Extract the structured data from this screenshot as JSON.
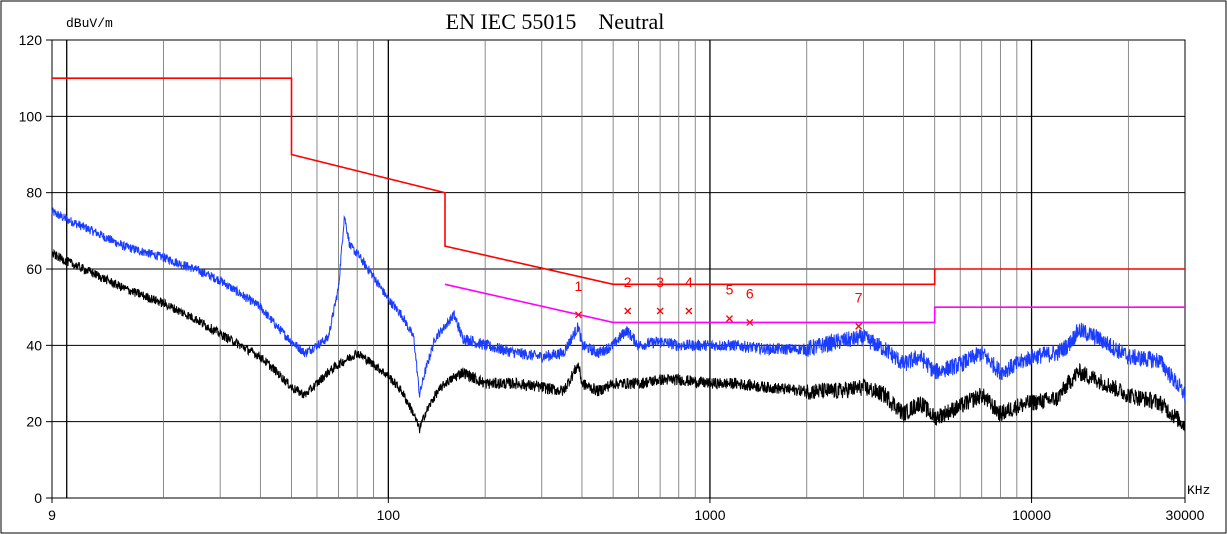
{
  "chart_data": {
    "type": "line",
    "title": "EN IEC 55015    Neutral",
    "ylabel": "dBuV/m",
    "xlabel": "KHz",
    "x_scale": "log",
    "xlim": [
      9,
      30000
    ],
    "ylim": [
      0,
      120
    ],
    "grid": true,
    "y_ticks": [
      0,
      20,
      40,
      60,
      80,
      100,
      120
    ],
    "x_tick_labels": [
      {
        "value": 9,
        "label": "9"
      },
      {
        "value": 100,
        "label": "100"
      },
      {
        "value": 1000,
        "label": "1000"
      },
      {
        "value": 10000,
        "label": "10000"
      },
      {
        "value": 30000,
        "label": "30000"
      }
    ],
    "limit_lines": [
      {
        "color": "#ff0000",
        "points": [
          [
            9,
            110
          ],
          [
            50,
            110
          ],
          [
            50,
            90
          ],
          [
            150,
            80
          ],
          [
            150,
            66
          ],
          [
            500,
            56
          ],
          [
            5000,
            56
          ],
          [
            5000,
            60
          ],
          [
            30000,
            60
          ]
        ]
      },
      {
        "color": "#ff00ff",
        "points": [
          [
            150,
            56
          ],
          [
            500,
            46
          ],
          [
            5000,
            46
          ],
          [
            5000,
            50
          ],
          [
            30000,
            50
          ]
        ]
      }
    ],
    "series": [
      {
        "color": "#1a3cff",
        "points": [
          [
            9,
            75
          ],
          [
            10,
            73
          ],
          [
            12,
            70
          ],
          [
            15,
            66
          ],
          [
            20,
            63
          ],
          [
            25,
            60
          ],
          [
            30,
            57
          ],
          [
            40,
            50
          ],
          [
            45,
            45
          ],
          [
            50,
            41
          ],
          [
            55,
            38
          ],
          [
            60,
            40
          ],
          [
            65,
            42
          ],
          [
            70,
            55
          ],
          [
            73,
            74
          ],
          [
            76,
            66
          ],
          [
            80,
            64
          ],
          [
            90,
            58
          ],
          [
            100,
            52
          ],
          [
            110,
            48
          ],
          [
            120,
            42
          ],
          [
            125,
            27
          ],
          [
            130,
            33
          ],
          [
            140,
            42
          ],
          [
            150,
            45
          ],
          [
            160,
            48
          ],
          [
            170,
            42
          ],
          [
            200,
            40
          ],
          [
            250,
            38
          ],
          [
            300,
            37
          ],
          [
            350,
            38
          ],
          [
            390,
            45
          ],
          [
            400,
            40
          ],
          [
            450,
            38
          ],
          [
            500,
            40
          ],
          [
            550,
            44
          ],
          [
            600,
            40
          ],
          [
            700,
            41
          ],
          [
            800,
            40
          ],
          [
            1000,
            40
          ],
          [
            1200,
            40
          ],
          [
            1500,
            39
          ],
          [
            2000,
            39
          ],
          [
            2500,
            41
          ],
          [
            3000,
            42
          ],
          [
            3500,
            39
          ],
          [
            4000,
            35
          ],
          [
            4500,
            37
          ],
          [
            5000,
            33
          ],
          [
            6000,
            35
          ],
          [
            7000,
            38
          ],
          [
            8000,
            33
          ],
          [
            9000,
            35
          ],
          [
            10000,
            37
          ],
          [
            12000,
            38
          ],
          [
            13000,
            40
          ],
          [
            14000,
            44
          ],
          [
            16000,
            42
          ],
          [
            20000,
            37
          ],
          [
            25000,
            36
          ],
          [
            30000,
            27
          ]
        ]
      },
      {
        "color": "#000000",
        "points": [
          [
            9,
            64
          ],
          [
            10,
            62
          ],
          [
            12,
            59
          ],
          [
            15,
            55
          ],
          [
            20,
            51
          ],
          [
            25,
            47
          ],
          [
            30,
            43
          ],
          [
            40,
            37
          ],
          [
            45,
            33
          ],
          [
            50,
            29
          ],
          [
            55,
            27
          ],
          [
            60,
            30
          ],
          [
            65,
            33
          ],
          [
            70,
            35
          ],
          [
            80,
            38
          ],
          [
            90,
            35
          ],
          [
            100,
            32
          ],
          [
            110,
            28
          ],
          [
            120,
            22
          ],
          [
            125,
            18
          ],
          [
            130,
            22
          ],
          [
            140,
            27
          ],
          [
            150,
            30
          ],
          [
            170,
            33
          ],
          [
            200,
            30
          ],
          [
            250,
            30
          ],
          [
            300,
            29
          ],
          [
            350,
            28
          ],
          [
            390,
            35
          ],
          [
            400,
            30
          ],
          [
            450,
            28
          ],
          [
            500,
            30
          ],
          [
            600,
            30
          ],
          [
            700,
            31
          ],
          [
            800,
            31
          ],
          [
            1000,
            30
          ],
          [
            1200,
            30
          ],
          [
            1500,
            29
          ],
          [
            2000,
            28
          ],
          [
            2500,
            28
          ],
          [
            3000,
            29
          ],
          [
            3500,
            27
          ],
          [
            4000,
            22
          ],
          [
            4500,
            25
          ],
          [
            5000,
            21
          ],
          [
            6000,
            24
          ],
          [
            7000,
            27
          ],
          [
            8000,
            22
          ],
          [
            9000,
            24
          ],
          [
            10000,
            25
          ],
          [
            12000,
            26
          ],
          [
            13000,
            30
          ],
          [
            14000,
            33
          ],
          [
            16000,
            31
          ],
          [
            20000,
            27
          ],
          [
            25000,
            25
          ],
          [
            30000,
            19
          ]
        ]
      }
    ],
    "markers": [
      {
        "label": "1",
        "x": 390,
        "y": 48
      },
      {
        "label": "2",
        "x": 555,
        "y": 49
      },
      {
        "label": "3",
        "x": 700,
        "y": 49
      },
      {
        "label": "4",
        "x": 860,
        "y": 49
      },
      {
        "label": "5",
        "x": 1150,
        "y": 47
      },
      {
        "label": "6",
        "x": 1330,
        "y": 46
      },
      {
        "label": "7",
        "x": 2900,
        "y": 45
      }
    ]
  }
}
